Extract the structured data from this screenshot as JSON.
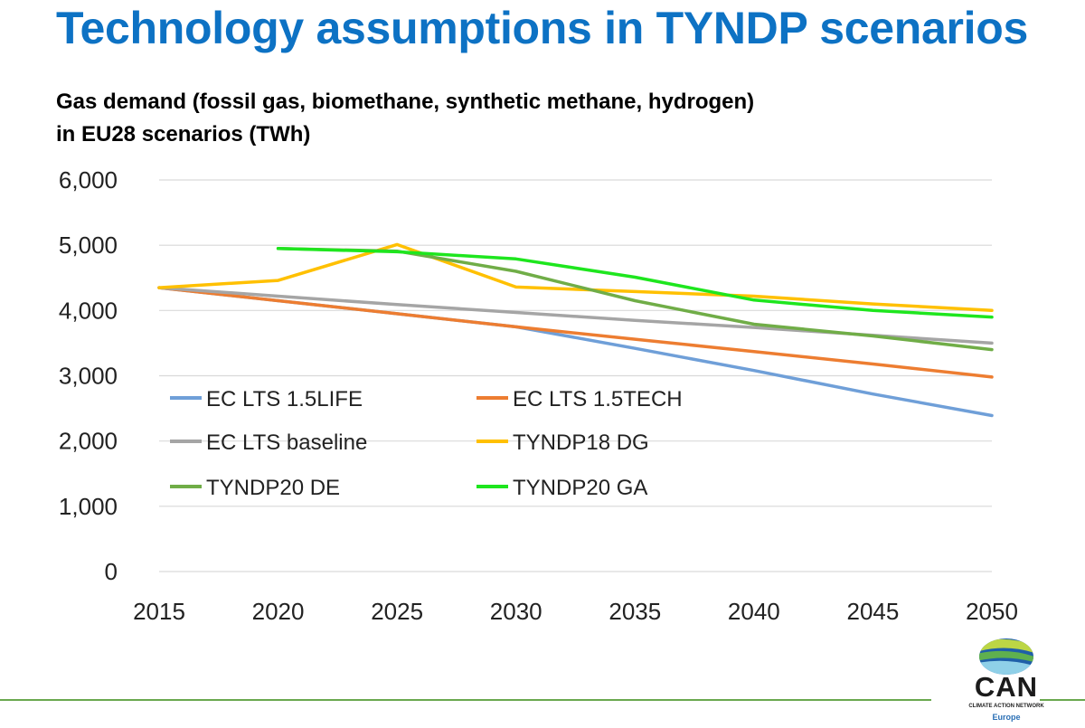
{
  "page": {
    "title": "Technology assumptions in TYNDP scenarios"
  },
  "logo": {
    "name": "CAN",
    "subtitle": "CLIMATE ACTION NETWORK",
    "region": "Europe"
  },
  "colors": {
    "title": "#0d72c4",
    "grid": "#d9d9d9",
    "rule": "#6aa84f"
  },
  "chart_data": {
    "type": "line",
    "title_lines": [
      "Gas demand (fossil gas, biomethane, synthetic methane, hydrogen)",
      "in EU28 scenarios (TWh)"
    ],
    "xlabel": "",
    "ylabel": "",
    "x": [
      2015,
      2020,
      2025,
      2030,
      2035,
      2040,
      2045,
      2050
    ],
    "xlim": [
      2015,
      2050
    ],
    "ylim": [
      0,
      6000
    ],
    "yticks": [
      0,
      1000,
      2000,
      3000,
      4000,
      5000,
      6000
    ],
    "ytick_labels": [
      "0",
      "1,000",
      "2,000",
      "3,000",
      "4,000",
      "5,000",
      "6,000"
    ],
    "xtick_labels": [
      "2015",
      "2020",
      "2025",
      "2030",
      "2035",
      "2040",
      "2045",
      "2050"
    ],
    "grid": "horizontal",
    "legend_position": "inside-lower-left",
    "series": [
      {
        "name": "EC LTS 1.5LIFE",
        "color": "#6f9fd8",
        "points": [
          [
            2015,
            4350
          ],
          [
            2020,
            4150
          ],
          [
            2025,
            3950
          ],
          [
            2030,
            3750
          ],
          [
            2035,
            3420
          ],
          [
            2040,
            3080
          ],
          [
            2045,
            2720
          ],
          [
            2050,
            2390
          ]
        ]
      },
      {
        "name": "EC LTS 1.5TECH",
        "color": "#ed7d31",
        "points": [
          [
            2015,
            4350
          ],
          [
            2020,
            4150
          ],
          [
            2025,
            3950
          ],
          [
            2030,
            3750
          ],
          [
            2035,
            3560
          ],
          [
            2040,
            3370
          ],
          [
            2045,
            3180
          ],
          [
            2050,
            2980
          ]
        ]
      },
      {
        "name": "EC LTS baseline",
        "color": "#a5a5a5",
        "points": [
          [
            2015,
            4350
          ],
          [
            2020,
            4220
          ],
          [
            2025,
            4090
          ],
          [
            2030,
            3970
          ],
          [
            2035,
            3850
          ],
          [
            2040,
            3740
          ],
          [
            2045,
            3620
          ],
          [
            2050,
            3500
          ]
        ]
      },
      {
        "name": "TYNDP18 DG",
        "color": "#ffc000",
        "points": [
          [
            2015,
            4350
          ],
          [
            2020,
            4460
          ],
          [
            2025,
            5010
          ],
          [
            2030,
            4360
          ],
          [
            2035,
            4290
          ],
          [
            2040,
            4220
          ],
          [
            2045,
            4100
          ],
          [
            2050,
            4000
          ]
        ]
      },
      {
        "name": "TYNDP20 DE",
        "color": "#70ad47",
        "points": [
          [
            2020,
            4950
          ],
          [
            2025,
            4910
          ],
          [
            2030,
            4600
          ],
          [
            2035,
            4150
          ],
          [
            2040,
            3790
          ],
          [
            2045,
            3610
          ],
          [
            2050,
            3400
          ]
        ]
      },
      {
        "name": "TYNDP20 GA",
        "color": "#1ee61e",
        "points": [
          [
            2020,
            4950
          ],
          [
            2025,
            4900
          ],
          [
            2030,
            4790
          ],
          [
            2035,
            4510
          ],
          [
            2040,
            4160
          ],
          [
            2045,
            4000
          ],
          [
            2050,
            3900
          ]
        ]
      }
    ]
  }
}
